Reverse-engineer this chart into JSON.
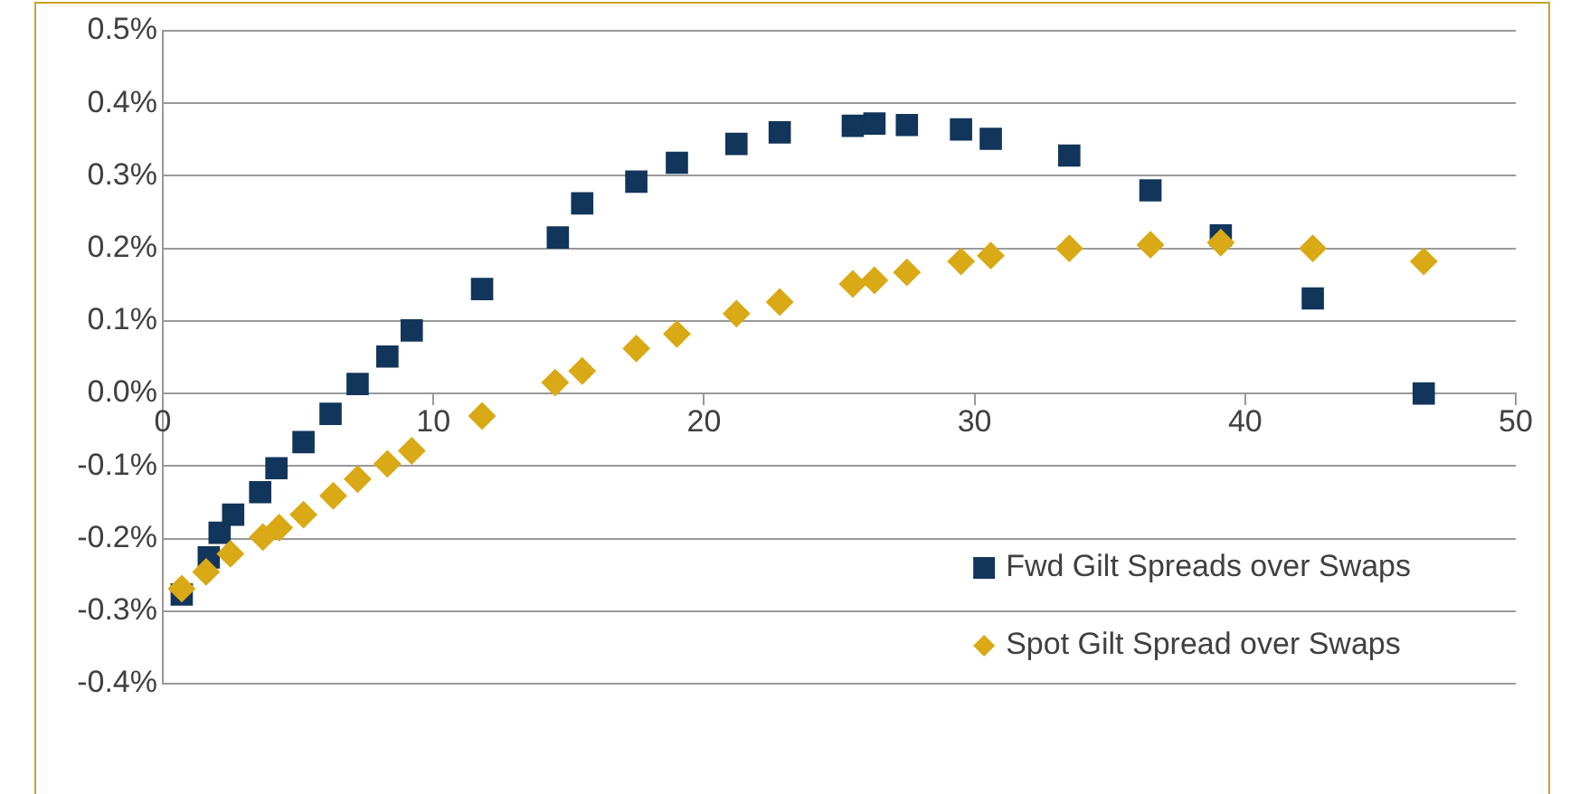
{
  "chart_data": {
    "type": "scatter",
    "series": [
      {
        "name": "Fwd Gilt Spreads over Swaps",
        "color": "#12355b",
        "marker": "square",
        "x": [
          0.7,
          1.7,
          2.1,
          2.6,
          3.6,
          4.2,
          5.2,
          6.2,
          7.2,
          8.3,
          9.2,
          11.8,
          14.6,
          15.5,
          17.5,
          19.0,
          21.2,
          22.8,
          25.5,
          26.3,
          27.5,
          29.5,
          30.6,
          33.5,
          36.5,
          39.1,
          42.5,
          46.6
        ],
        "values": [
          -0.277,
          -0.226,
          -0.192,
          -0.167,
          -0.136,
          -0.103,
          -0.067,
          -0.028,
          0.013,
          0.051,
          0.087,
          0.144,
          0.215,
          0.262,
          0.292,
          0.318,
          0.344,
          0.36,
          0.369,
          0.372,
          0.37,
          0.364,
          0.351,
          0.328,
          0.28,
          0.218,
          0.131,
          0.0
        ]
      },
      {
        "name": "Spot Gilt Spread over Swaps",
        "color": "#d9a916",
        "marker": "diamond",
        "x": [
          0.7,
          1.6,
          2.5,
          3.7,
          4.3,
          5.2,
          6.3,
          7.2,
          8.3,
          9.2,
          11.8,
          14.5,
          15.5,
          17.5,
          19.0,
          21.2,
          22.8,
          25.5,
          26.3,
          27.5,
          29.5,
          30.6,
          33.5,
          36.5,
          39.1,
          42.5,
          46.6
        ],
        "values": [
          -0.269,
          -0.246,
          -0.221,
          -0.198,
          -0.185,
          -0.167,
          -0.141,
          -0.118,
          -0.097,
          -0.079,
          -0.031,
          0.015,
          0.031,
          0.062,
          0.082,
          0.11,
          0.126,
          0.151,
          0.156,
          0.167,
          0.182,
          0.19,
          0.2,
          0.205,
          0.208,
          0.2,
          0.182
        ]
      }
    ],
    "xlim": [
      0,
      50
    ],
    "xticks": [
      0,
      10,
      20,
      30,
      40,
      50
    ],
    "ylim": [
      -0.4,
      0.5
    ],
    "yticks": [
      {
        "value": -0.4,
        "label": "-0.4%"
      },
      {
        "value": -0.3,
        "label": "-0.3%"
      },
      {
        "value": -0.2,
        "label": "-0.2%"
      },
      {
        "value": -0.1,
        "label": "-0.1%"
      },
      {
        "value": 0,
        "label": "0.0%"
      },
      {
        "value": 0.1,
        "label": "0.1%"
      },
      {
        "value": 0.2,
        "label": "0.2%"
      },
      {
        "value": 0.3,
        "label": "0.3%"
      },
      {
        "value": 0.4,
        "label": "0.4%"
      },
      {
        "value": 0.5,
        "label": "0.5%"
      }
    ],
    "grid": "y",
    "legend": "bottom right"
  }
}
